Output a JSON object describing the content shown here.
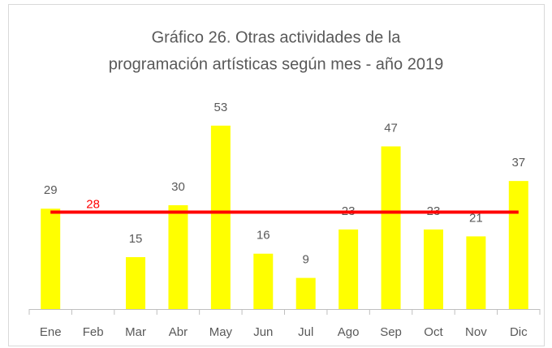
{
  "chart_data": {
    "type": "bar",
    "title": [
      "Gráfico 26. Otras actividades  de la",
      "programación artísticas según mes - año 2019"
    ],
    "categories": [
      "Ene",
      "Feb",
      "Mar",
      "Abr",
      "May",
      "Jun",
      "Jul",
      "Ago",
      "Sep",
      "Oct",
      "Nov",
      "Dic"
    ],
    "values": [
      29,
      null,
      15,
      30,
      53,
      16,
      9,
      23,
      47,
      23,
      21,
      37
    ],
    "color": "#ffff00",
    "ylim": [
      0,
      60
    ],
    "reference_line": {
      "value": 28,
      "color": "#ff0000"
    }
  }
}
